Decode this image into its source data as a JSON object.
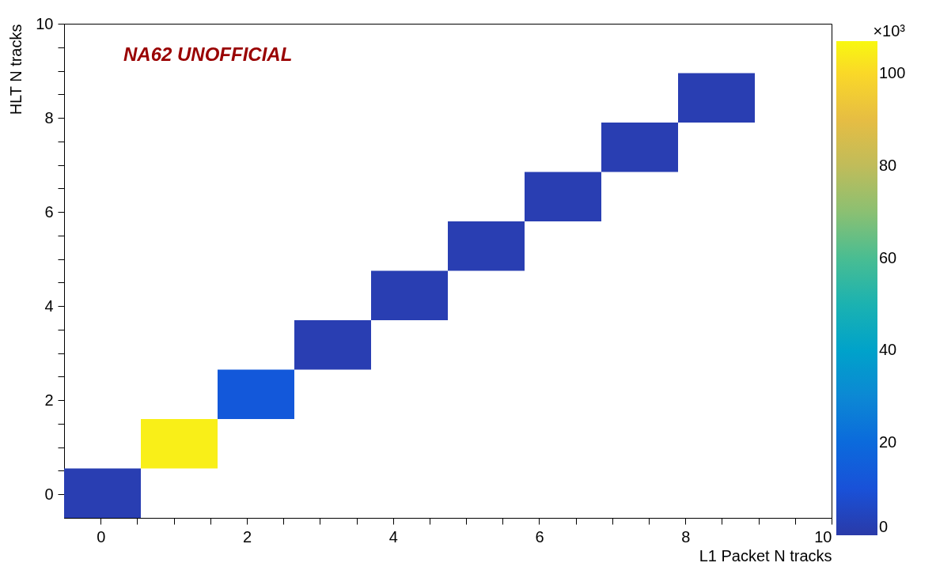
{
  "chart_data": {
    "type": "heatmap",
    "xlabel": "L1 Packet N tracks",
    "ylabel": "HLT N tracks",
    "clabel": "×10³",
    "annotations": [
      "NA62 UNOFFICIAL"
    ],
    "x": [
      0.025,
      1.075,
      2.125,
      3.175,
      4.225,
      5.275,
      6.325,
      7.375,
      8.425,
      9.475
    ],
    "y": [
      8.425,
      7.375,
      6.325,
      5.275,
      4.225,
      3.175,
      2.125,
      1.075,
      0.025
    ],
    "cells": [
      [
        null,
        null,
        null,
        null,
        null,
        null,
        null,
        null,
        2,
        null
      ],
      [
        null,
        null,
        null,
        null,
        null,
        null,
        null,
        2,
        null,
        null
      ],
      [
        null,
        null,
        null,
        null,
        null,
        null,
        2,
        null,
        null,
        null
      ],
      [
        null,
        null,
        null,
        null,
        null,
        2,
        null,
        null,
        null,
        null
      ],
      [
        null,
        null,
        null,
        null,
        2,
        null,
        null,
        null,
        null,
        null
      ],
      [
        null,
        null,
        null,
        2,
        null,
        null,
        null,
        null,
        null,
        null
      ],
      [
        null,
        null,
        13,
        null,
        null,
        null,
        null,
        null,
        null,
        null
      ],
      [
        null,
        105,
        null,
        null,
        null,
        null,
        null,
        null,
        null,
        null
      ],
      [
        2,
        null,
        null,
        null,
        null,
        null,
        null,
        null,
        null,
        null
      ]
    ],
    "xlim": [
      -0.5,
      10
    ],
    "ylim": [
      -0.5,
      10
    ],
    "xticks": [
      0,
      {
        "value": 0.5,
        "label": null
      },
      {
        "value": 1,
        "label": null
      },
      {
        "value": 1.5,
        "label": null
      },
      2,
      {
        "value": 2.5,
        "label": null
      },
      {
        "value": 3,
        "label": null
      },
      {
        "value": 3.5,
        "label": null
      },
      4,
      {
        "value": 4.5,
        "label": null
      },
      {
        "value": 5,
        "label": null
      },
      {
        "value": 5.5,
        "label": null
      },
      6,
      {
        "value": 6.5,
        "label": null
      },
      {
        "value": 7,
        "label": null
      },
      {
        "value": 7.5,
        "label": null
      },
      8,
      {
        "value": 8.5,
        "label": null
      },
      {
        "value": 9,
        "label": null
      },
      {
        "value": 9.5,
        "label": null
      },
      10
    ],
    "yticks": [
      0,
      {
        "value": 0.5,
        "label": null
      },
      {
        "value": 1,
        "label": null
      },
      {
        "value": 1.5,
        "label": null
      },
      2,
      {
        "value": 2.5,
        "label": null
      },
      {
        "value": 3,
        "label": null
      },
      {
        "value": 3.5,
        "label": null
      },
      4,
      {
        "value": 4.5,
        "label": null
      },
      {
        "value": 5,
        "label": null
      },
      {
        "value": 5.5,
        "label": null
      },
      6,
      {
        "value": 6.5,
        "label": null
      },
      {
        "value": 7,
        "label": null
      },
      {
        "value": 7.5,
        "label": null
      },
      8,
      {
        "value": 8.5,
        "label": null
      },
      {
        "value": 9,
        "label": null
      },
      {
        "value": 9.5,
        "label": null
      },
      10
    ],
    "clim": [
      0,
      107
    ],
    "cticks": [
      0,
      20,
      40,
      60,
      80,
      100
    ],
    "grid": false
  }
}
